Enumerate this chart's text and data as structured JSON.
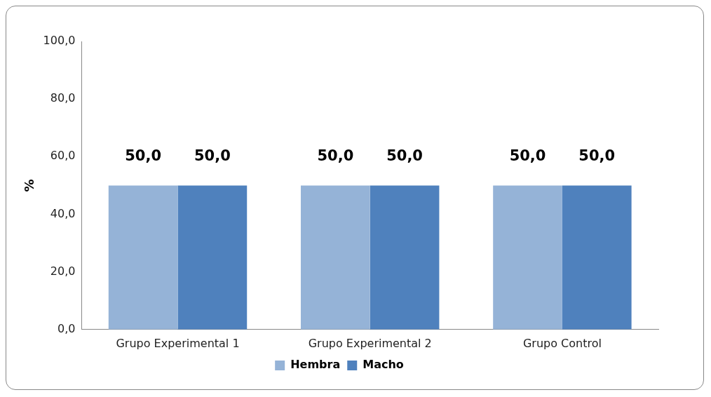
{
  "chart_data": {
    "type": "bar",
    "ylabel": "%",
    "categories": [
      "Grupo Experimental 1",
      "Grupo Experimental 2",
      "Grupo Control"
    ],
    "series": [
      {
        "name": "Hembra",
        "color": "#95b3d7",
        "values": [
          50,
          50,
          50
        ],
        "value_labels": [
          "50,0",
          "50,0",
          "50,0"
        ]
      },
      {
        "name": "Macho",
        "color": "#4f81bd",
        "values": [
          50,
          50,
          50
        ],
        "value_labels": [
          "50,0",
          "50,0",
          "50,0"
        ]
      }
    ],
    "ylim": [
      0,
      100
    ],
    "yticks": [
      {
        "value": 0,
        "label": "0,0"
      },
      {
        "value": 20,
        "label": "20,0"
      },
      {
        "value": 40,
        "label": "40,0"
      },
      {
        "value": 60,
        "label": "60,0"
      },
      {
        "value": 80,
        "label": "80,0"
      },
      {
        "value": 100,
        "label": "100,0"
      }
    ],
    "grid": false,
    "legend": "bottom"
  }
}
